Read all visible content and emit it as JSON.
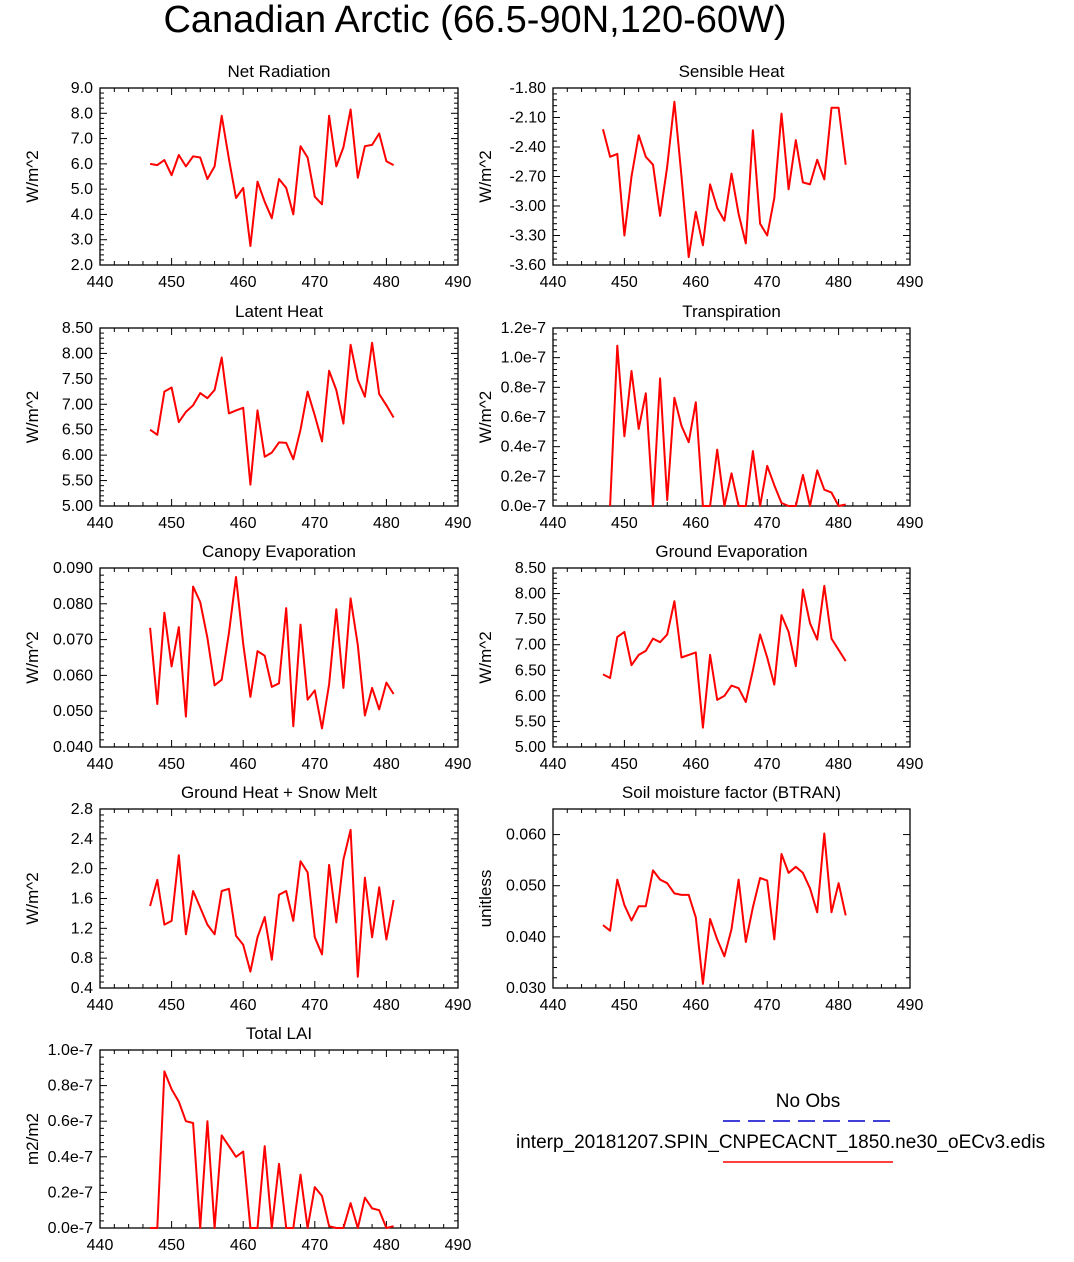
{
  "title": "Canadian Arctic (66.5-90N,120-60W)",
  "colors": {
    "model_line": "#ff0000",
    "obs_line": "#0000cc",
    "axis": "#000000"
  },
  "legend": {
    "obs_label": "No Obs",
    "model_label": "interp_20181207.SPIN_CNPECACNT_1850.ne30_oECv3.edis"
  },
  "chart_data": [
    {
      "type": "line",
      "title": "Net Radiation",
      "ylabel": "W/m^2",
      "xlim": [
        440,
        490
      ],
      "ylim": [
        2.0,
        9.0
      ],
      "xticks": [
        "440",
        "450",
        "460",
        "470",
        "480",
        "490"
      ],
      "yticks": [
        "2.0",
        "3.0",
        "4.0",
        "5.0",
        "6.0",
        "7.0",
        "8.0",
        "9.0"
      ],
      "x": [
        447,
        448,
        449,
        450,
        451,
        452,
        453,
        454,
        455,
        456,
        457,
        458,
        459,
        460,
        461,
        462,
        463,
        464,
        465,
        466,
        467,
        468,
        469,
        470,
        471,
        472,
        473,
        474,
        475,
        476,
        477,
        478,
        479,
        480,
        481
      ],
      "values": [
        6.0,
        5.95,
        6.15,
        5.55,
        6.35,
        5.9,
        6.3,
        6.25,
        5.4,
        5.9,
        7.9,
        6.2,
        4.65,
        5.05,
        2.75,
        5.3,
        4.5,
        3.85,
        5.4,
        5.05,
        4.0,
        6.7,
        6.25,
        4.7,
        4.4,
        7.9,
        5.9,
        6.65,
        8.15,
        5.45,
        6.7,
        6.75,
        7.2,
        6.1,
        5.95
      ]
    },
    {
      "type": "line",
      "title": "Sensible Heat",
      "ylabel": "W/m^2",
      "xlim": [
        440,
        490
      ],
      "ylim": [
        -3.6,
        -1.8
      ],
      "xticks": [
        "440",
        "450",
        "460",
        "470",
        "480",
        "490"
      ],
      "yticks": [
        "-3.60",
        "-3.30",
        "-3.00",
        "-2.70",
        "-2.40",
        "-2.10",
        "-1.80"
      ],
      "x": [
        447,
        448,
        449,
        450,
        451,
        452,
        453,
        454,
        455,
        456,
        457,
        458,
        459,
        460,
        461,
        462,
        463,
        464,
        465,
        466,
        467,
        468,
        469,
        470,
        471,
        472,
        473,
        474,
        475,
        476,
        477,
        478,
        479,
        480,
        481
      ],
      "values": [
        -2.22,
        -2.5,
        -2.47,
        -3.3,
        -2.7,
        -2.28,
        -2.5,
        -2.58,
        -3.1,
        -2.6,
        -1.94,
        -2.7,
        -3.52,
        -3.06,
        -3.4,
        -2.78,
        -3.02,
        -3.15,
        -2.67,
        -3.08,
        -3.38,
        -2.23,
        -3.18,
        -3.3,
        -2.92,
        -2.06,
        -2.83,
        -2.33,
        -2.76,
        -2.78,
        -2.53,
        -2.73,
        -2.0,
        -2.0,
        -2.58
      ]
    },
    {
      "type": "line",
      "title": "Latent Heat",
      "ylabel": "W/m^2",
      "xlim": [
        440,
        490
      ],
      "ylim": [
        5.0,
        8.5
      ],
      "xticks": [
        "440",
        "450",
        "460",
        "470",
        "480",
        "490"
      ],
      "yticks": [
        "5.00",
        "5.50",
        "6.00",
        "6.50",
        "7.00",
        "7.50",
        "8.00",
        "8.50"
      ],
      "x": [
        447,
        448,
        449,
        450,
        451,
        452,
        453,
        454,
        455,
        456,
        457,
        458,
        459,
        460,
        461,
        462,
        463,
        464,
        465,
        466,
        467,
        468,
        469,
        470,
        471,
        472,
        473,
        474,
        475,
        476,
        477,
        478,
        479,
        480,
        481
      ],
      "values": [
        6.5,
        6.4,
        7.25,
        7.33,
        6.65,
        6.85,
        6.98,
        7.22,
        7.12,
        7.28,
        7.92,
        6.82,
        6.88,
        6.93,
        5.42,
        6.88,
        5.97,
        6.05,
        6.25,
        6.24,
        5.92,
        6.5,
        7.25,
        6.78,
        6.27,
        7.66,
        7.28,
        6.62,
        8.17,
        7.48,
        7.15,
        8.21,
        7.2,
        6.98,
        6.74
      ]
    },
    {
      "type": "line",
      "title": "Transpiration",
      "ylabel": "W/m^2",
      "xlim": [
        440,
        490
      ],
      "ylim": [
        0,
        1.2e-07
      ],
      "xticks": [
        "440",
        "450",
        "460",
        "470",
        "480",
        "490"
      ],
      "yticks": [
        "0.0e-7",
        "0.2e-7",
        "0.4e-7",
        "0.6e-7",
        "0.8e-7",
        "1.0e-7",
        "1.2e-7"
      ],
      "x": [
        448,
        449,
        450,
        451,
        452,
        453,
        454,
        455,
        456,
        457,
        458,
        459,
        460,
        461,
        462,
        463,
        464,
        465,
        466,
        467,
        468,
        469,
        470,
        471,
        472,
        473,
        474,
        475,
        476,
        477,
        478,
        479,
        480,
        481
      ],
      "values": [
        0,
        1.08e-07,
        4.7e-08,
        9.1e-08,
        5.2e-08,
        7.6e-08,
        0,
        8.6e-08,
        4e-09,
        7.3e-08,
        5.4e-08,
        4.3e-08,
        7e-08,
        0,
        0,
        3.8e-08,
        0,
        2.2e-08,
        0,
        0,
        3.7e-08,
        0,
        2.7e-08,
        1.4e-08,
        2e-09,
        0,
        0,
        2.1e-08,
        0,
        2.4e-08,
        1.1e-08,
        9e-09,
        0,
        1e-09
      ]
    },
    {
      "type": "line",
      "title": "Canopy Evaporation",
      "ylabel": "W/m^2",
      "xlim": [
        440,
        490
      ],
      "ylim": [
        0.04,
        0.09
      ],
      "xticks": [
        "440",
        "450",
        "460",
        "470",
        "480",
        "490"
      ],
      "yticks": [
        "0.040",
        "0.050",
        "0.060",
        "0.070",
        "0.080",
        "0.090"
      ],
      "x": [
        447,
        448,
        449,
        450,
        451,
        452,
        453,
        454,
        455,
        456,
        457,
        458,
        459,
        460,
        461,
        462,
        463,
        464,
        465,
        466,
        467,
        468,
        469,
        470,
        471,
        472,
        473,
        474,
        475,
        476,
        477,
        478,
        479,
        480,
        481
      ],
      "values": [
        0.0733,
        0.052,
        0.0775,
        0.0625,
        0.0735,
        0.0485,
        0.0848,
        0.0805,
        0.0705,
        0.0572,
        0.0588,
        0.0718,
        0.0875,
        0.0688,
        0.054,
        0.0668,
        0.0655,
        0.0568,
        0.0578,
        0.0788,
        0.0458,
        0.0742,
        0.0532,
        0.0558,
        0.0452,
        0.0575,
        0.0785,
        0.0565,
        0.0815,
        0.0685,
        0.0488,
        0.0565,
        0.0505,
        0.058,
        0.0548
      ]
    },
    {
      "type": "line",
      "title": "Ground Evaporation",
      "ylabel": "W/m^2",
      "xlim": [
        440,
        490
      ],
      "ylim": [
        5.0,
        8.5
      ],
      "xticks": [
        "440",
        "450",
        "460",
        "470",
        "480",
        "490"
      ],
      "yticks": [
        "5.00",
        "5.50",
        "6.00",
        "6.50",
        "7.00",
        "7.50",
        "8.00",
        "8.50"
      ],
      "x": [
        447,
        448,
        449,
        450,
        451,
        452,
        453,
        454,
        455,
        456,
        457,
        458,
        459,
        460,
        461,
        462,
        463,
        464,
        465,
        466,
        467,
        468,
        469,
        470,
        471,
        472,
        473,
        474,
        475,
        476,
        477,
        478,
        479,
        480,
        481
      ],
      "values": [
        6.42,
        6.35,
        7.15,
        7.25,
        6.6,
        6.8,
        6.88,
        7.12,
        7.05,
        7.2,
        7.85,
        6.75,
        6.8,
        6.85,
        5.38,
        6.8,
        5.92,
        6.0,
        6.2,
        6.15,
        5.88,
        6.5,
        7.2,
        6.75,
        6.22,
        7.58,
        7.25,
        6.58,
        8.08,
        7.42,
        7.1,
        8.15,
        7.12,
        6.9,
        6.68
      ]
    },
    {
      "type": "line",
      "title": "Ground Heat + Snow Melt",
      "ylabel": "W/m^2",
      "xlim": [
        440,
        490
      ],
      "ylim": [
        0.4,
        2.8
      ],
      "xticks": [
        "440",
        "450",
        "460",
        "470",
        "480",
        "490"
      ],
      "yticks": [
        "0.4",
        "0.8",
        "1.2",
        "1.6",
        "2.0",
        "2.4",
        "2.8"
      ],
      "x": [
        447,
        448,
        449,
        450,
        451,
        452,
        453,
        454,
        455,
        456,
        457,
        458,
        459,
        460,
        461,
        462,
        463,
        464,
        465,
        466,
        467,
        468,
        469,
        470,
        471,
        472,
        473,
        474,
        475,
        476,
        477,
        478,
        479,
        480,
        481
      ],
      "values": [
        1.5,
        1.85,
        1.25,
        1.3,
        2.18,
        1.12,
        1.7,
        1.48,
        1.25,
        1.12,
        1.7,
        1.73,
        1.1,
        0.98,
        0.62,
        1.08,
        1.35,
        0.78,
        1.65,
        1.7,
        1.3,
        2.1,
        1.95,
        1.08,
        0.85,
        2.05,
        1.28,
        2.12,
        2.52,
        0.55,
        1.88,
        1.08,
        1.75,
        1.05,
        1.58
      ]
    },
    {
      "type": "line",
      "title": "Soil moisture factor (BTRAN)",
      "ylabel": "unitless",
      "xlim": [
        440,
        490
      ],
      "ylim": [
        0.03,
        0.065
      ],
      "xticks": [
        "440",
        "450",
        "460",
        "470",
        "480",
        "490"
      ],
      "yticks": [
        "0.030",
        "0.040",
        "0.050",
        "0.060"
      ],
      "x": [
        447,
        448,
        449,
        450,
        451,
        452,
        453,
        454,
        455,
        456,
        457,
        458,
        459,
        460,
        461,
        462,
        463,
        464,
        465,
        466,
        467,
        468,
        469,
        470,
        471,
        472,
        473,
        474,
        475,
        476,
        477,
        478,
        479,
        480,
        481
      ],
      "values": [
        0.0423,
        0.0412,
        0.0512,
        0.0462,
        0.0432,
        0.046,
        0.046,
        0.053,
        0.0512,
        0.0505,
        0.0485,
        0.0482,
        0.0482,
        0.0438,
        0.0308,
        0.0435,
        0.0395,
        0.0362,
        0.0415,
        0.0512,
        0.039,
        0.0458,
        0.0515,
        0.051,
        0.0395,
        0.0562,
        0.0525,
        0.0537,
        0.0525,
        0.0495,
        0.0448,
        0.0602,
        0.0448,
        0.0505,
        0.0442
      ]
    },
    {
      "type": "line",
      "title": "Total LAI",
      "ylabel": "m2/m2",
      "xlim": [
        440,
        490
      ],
      "ylim": [
        0,
        1e-07
      ],
      "xticks": [
        "440",
        "450",
        "460",
        "470",
        "480",
        "490"
      ],
      "yticks": [
        "0.0e-7",
        "0.2e-7",
        "0.4e-7",
        "0.6e-7",
        "0.8e-7",
        "1.0e-7"
      ],
      "x": [
        447,
        448,
        449,
        450,
        451,
        452,
        453,
        454,
        455,
        456,
        457,
        458,
        459,
        460,
        461,
        462,
        463,
        464,
        465,
        466,
        467,
        468,
        469,
        470,
        471,
        472,
        473,
        474,
        475,
        476,
        477,
        478,
        479,
        480,
        481
      ],
      "values": [
        0,
        0,
        8.8e-08,
        7.8e-08,
        7.1e-08,
        6e-08,
        5.9e-08,
        0,
        6e-08,
        0,
        5.2e-08,
        4.6e-08,
        4e-08,
        4.3e-08,
        0,
        0,
        4.6e-08,
        0,
        3.6e-08,
        0,
        0,
        3e-08,
        0,
        2.3e-08,
        1.8e-08,
        1e-09,
        0,
        0,
        1.4e-08,
        0,
        1.7e-08,
        1.1e-08,
        1e-08,
        0,
        1e-09
      ]
    }
  ]
}
